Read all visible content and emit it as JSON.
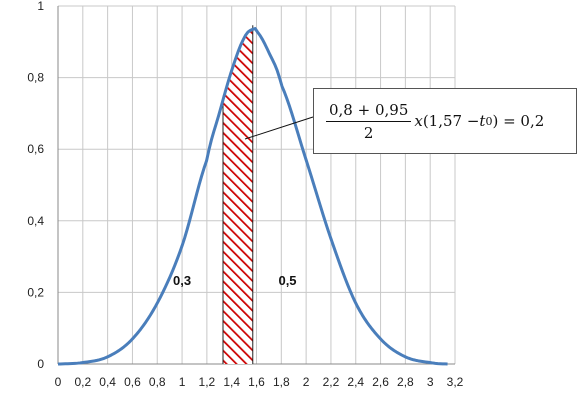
{
  "chart_data": {
    "type": "area",
    "xlim": [
      0,
      3.2
    ],
    "ylim": [
      0,
      1
    ],
    "x_ticks": [
      "0",
      "0,2",
      "0,4",
      "0,6",
      "0,8",
      "1",
      "1,2",
      "1,4",
      "1,6",
      "1,8",
      "2",
      "2,2",
      "2,4",
      "2,6",
      "2,8",
      "3",
      "3,2"
    ],
    "y_ticks": [
      "0",
      "0,2",
      "0,4",
      "0,6",
      "0,8",
      "1"
    ],
    "grid": true,
    "series": [
      {
        "color": "#4a7ebb",
        "x": [
          0,
          0.2,
          0.4,
          0.6,
          0.8,
          1.0,
          1.2,
          1.3,
          1.4,
          1.5,
          1.57,
          1.6,
          1.7,
          1.8,
          2.0,
          2.2,
          2.4,
          2.6,
          2.8,
          3.0,
          3.14
        ],
        "y": [
          0.0,
          0.004,
          0.02,
          0.07,
          0.17,
          0.33,
          0.57,
          0.7,
          0.82,
          0.91,
          0.935,
          0.93,
          0.87,
          0.78,
          0.57,
          0.35,
          0.17,
          0.07,
          0.02,
          0.004,
          0.0
        ]
      }
    ],
    "shaded_region": {
      "x_from": 1.33,
      "x_to": 1.57,
      "color": "#cc0000"
    },
    "vertical_lines": [
      1.33,
      1.57
    ],
    "region_labels": [
      {
        "text": "0,3",
        "x": 1.0,
        "y": 0.22
      },
      {
        "text": "0,5",
        "x": 1.85,
        "y": 0.22
      }
    ]
  },
  "formula": {
    "numerator": "0,8 + 0,95",
    "denominator": "2",
    "x_part": "x",
    "paren_left": "(1,57 − ",
    "t": "t",
    "sub": "0",
    "paren_right": ") = 0,2"
  }
}
